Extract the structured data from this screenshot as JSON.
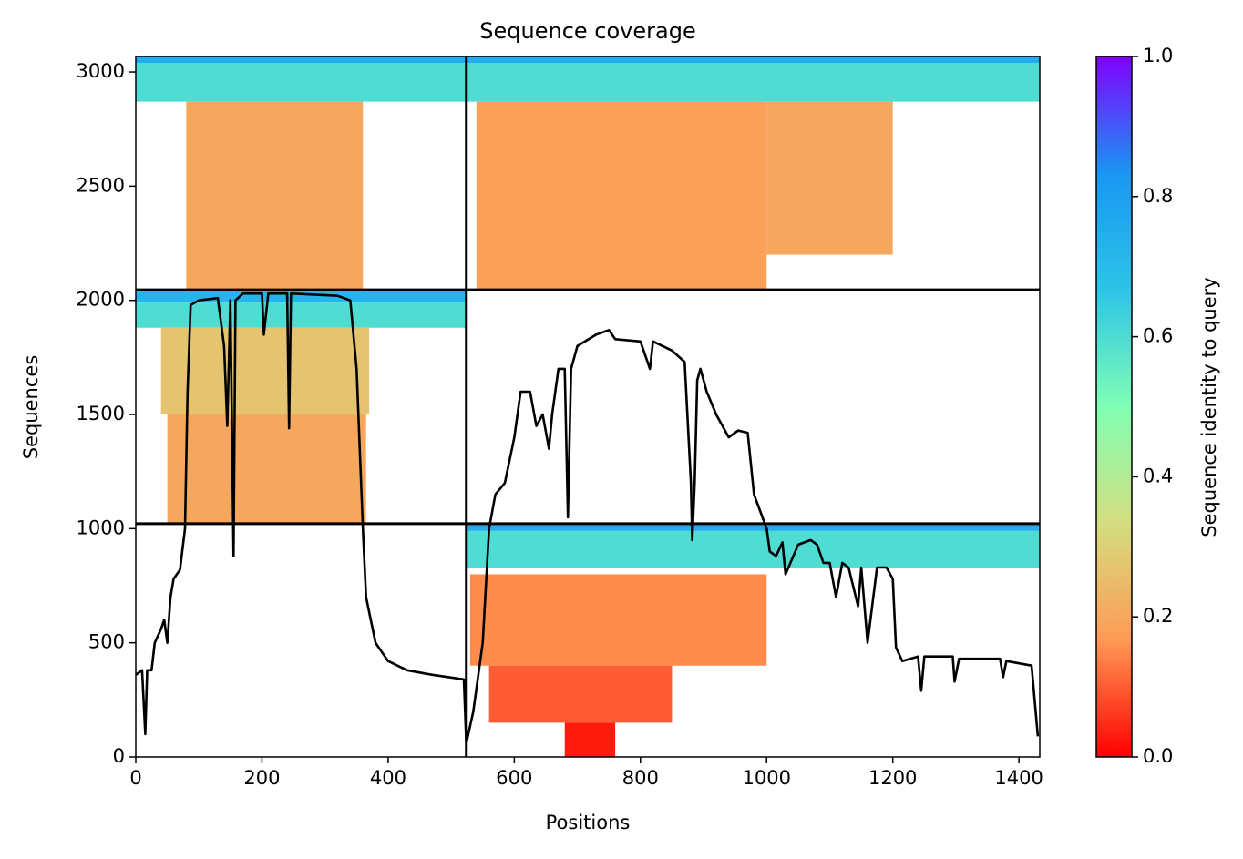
{
  "chart_data": {
    "type": "coverage",
    "title": "Sequence coverage",
    "xlabel": "Positions",
    "ylabel": "Sequences",
    "xlim": [
      0,
      1433
    ],
    "ylim": [
      0,
      3068
    ],
    "xticks": [
      0,
      200,
      400,
      600,
      800,
      1000,
      1200,
      1400
    ],
    "yticks": [
      0,
      500,
      1000,
      1500,
      2000,
      2500,
      3000
    ],
    "colorbar": {
      "label": "Sequence identity to query",
      "lim": [
        0,
        1
      ],
      "ticks": [
        {
          "value": 0,
          "label": "0.0"
        },
        0.2,
        0.4,
        0.6,
        0.8,
        {
          "value": 1,
          "label": "1.0"
        }
      ],
      "colormap": [
        "#ff0000",
        "#ff9a55",
        "#d4dd80",
        "#80ffb4",
        "#2cc4e7",
        "#1996f3",
        "#8000ff"
      ]
    },
    "dividers": {
      "x": [
        524
      ],
      "y": [
        1022,
        2046
      ]
    },
    "blocks": [
      {
        "x0": 0,
        "x1": 524,
        "y0": 3040,
        "y1": 3068,
        "identity": 0.75
      },
      {
        "x0": 0,
        "x1": 524,
        "y0": 2870,
        "y1": 3040,
        "identity": 0.6
      },
      {
        "x0": 80,
        "x1": 360,
        "y0": 2046,
        "y1": 2870,
        "identity": 0.2
      },
      {
        "x0": 524,
        "x1": 1433,
        "y0": 3040,
        "y1": 3068,
        "identity": 0.75
      },
      {
        "x0": 524,
        "x1": 1433,
        "y0": 2870,
        "y1": 3040,
        "identity": 0.6
      },
      {
        "x0": 540,
        "x1": 1000,
        "y0": 2046,
        "y1": 2870,
        "identity": 0.18
      },
      {
        "x0": 1000,
        "x1": 1200,
        "y0": 2200,
        "y1": 2870,
        "identity": 0.2
      },
      {
        "x0": 0,
        "x1": 524,
        "y0": 1990,
        "y1": 2046,
        "identity": 0.72
      },
      {
        "x0": 0,
        "x1": 524,
        "y0": 1880,
        "y1": 1990,
        "identity": 0.6
      },
      {
        "x0": 40,
        "x1": 370,
        "y0": 1500,
        "y1": 1880,
        "identity": 0.27
      },
      {
        "x0": 50,
        "x1": 365,
        "y0": 1022,
        "y1": 1500,
        "identity": 0.2
      },
      {
        "x0": 524,
        "x1": 1433,
        "y0": 990,
        "y1": 1022,
        "identity": 0.75
      },
      {
        "x0": 524,
        "x1": 1433,
        "y0": 830,
        "y1": 990,
        "identity": 0.6
      },
      {
        "x0": 530,
        "x1": 1000,
        "y0": 400,
        "y1": 800,
        "identity": 0.15
      },
      {
        "x0": 560,
        "x1": 850,
        "y0": 150,
        "y1": 400,
        "identity": 0.1
      },
      {
        "x0": 680,
        "x1": 760,
        "y0": 0,
        "y1": 150,
        "identity": 0.03
      }
    ],
    "coverage": {
      "color": "#000000",
      "x": [
        0,
        10,
        15,
        18,
        25,
        30,
        40,
        45,
        50,
        55,
        60,
        70,
        78,
        82,
        87,
        100,
        130,
        140,
        145,
        150,
        155,
        158,
        170,
        200,
        203,
        210,
        240,
        243,
        246,
        320,
        340,
        350,
        360,
        365,
        380,
        400,
        430,
        470,
        520,
        524,
        535,
        550,
        560,
        570,
        585,
        600,
        610,
        625,
        635,
        645,
        655,
        660,
        670,
        680,
        685,
        690,
        700,
        730,
        750,
        760,
        800,
        815,
        820,
        850,
        870,
        880,
        882,
        886,
        890,
        895,
        905,
        920,
        940,
        955,
        970,
        980,
        1000,
        1005,
        1015,
        1025,
        1030,
        1050,
        1070,
        1080,
        1090,
        1100,
        1110,
        1120,
        1130,
        1145,
        1150,
        1160,
        1175,
        1190,
        1200,
        1205,
        1215,
        1240,
        1245,
        1250,
        1295,
        1298,
        1305,
        1370,
        1375,
        1380,
        1420,
        1430
      ],
      "values": [
        360,
        380,
        100,
        380,
        380,
        500,
        560,
        600,
        500,
        700,
        780,
        820,
        1000,
        1600,
        1980,
        2000,
        2010,
        1800,
        1450,
        2000,
        880,
        2000,
        2030,
        2030,
        1850,
        2030,
        2030,
        1440,
        2030,
        2020,
        2000,
        1700,
        1000,
        700,
        500,
        420,
        380,
        360,
        340,
        60,
        200,
        500,
        1000,
        1150,
        1200,
        1400,
        1600,
        1600,
        1450,
        1500,
        1350,
        1500,
        1700,
        1700,
        1050,
        1700,
        1800,
        1850,
        1870,
        1830,
        1820,
        1700,
        1820,
        1780,
        1730,
        1200,
        950,
        1200,
        1650,
        1700,
        1600,
        1500,
        1400,
        1430,
        1420,
        1150,
        1000,
        900,
        880,
        940,
        800,
        930,
        950,
        930,
        850,
        850,
        700,
        850,
        830,
        660,
        830,
        500,
        830,
        830,
        780,
        480,
        420,
        440,
        290,
        440,
        440,
        330,
        430,
        430,
        350,
        420,
        400,
        90
      ]
    }
  }
}
